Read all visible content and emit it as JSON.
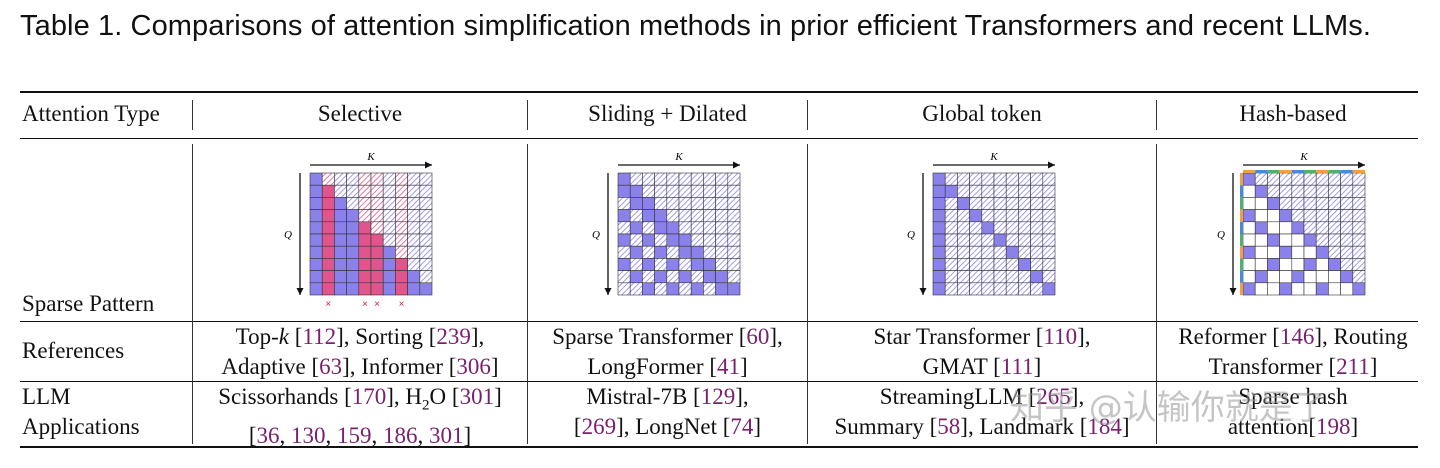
{
  "caption": "Table 1.  Comparisons of attention simplification methods in prior efficient Transformers and recent LLMs.",
  "headers": {
    "attention_type": "Attention Type",
    "selective": "Selective",
    "sliding": "Sliding + Dilated",
    "global": "Global token",
    "hash": "Hash-based"
  },
  "row_labels": {
    "sparse_pattern": "Sparse Pattern",
    "references": "References",
    "llm_line1": "LLM",
    "llm_line2": "Applications"
  },
  "axis_labels": {
    "k": "K",
    "q": "Q"
  },
  "marks": {
    "x": "×"
  },
  "colors": {
    "attend": "#8a82ea",
    "hatch": "#c9c5f5",
    "selective": "#e0568c",
    "selective_hatch": "#f3b6cf",
    "ref_link": "#7a1f6e",
    "hash_orange": "#f0a040",
    "hash_green": "#50b070",
    "hash_blue": "#4a88d8"
  },
  "references": {
    "selective": {
      "l1_a": "Top-",
      "l1_k": "k",
      "l1_b": " [",
      "r1": "112",
      "l1_c": "], Sorting [",
      "r2": "239",
      "l1_d": "],",
      "l2_a": "Adaptive [",
      "r3": "63",
      "l2_b": "], Informer [",
      "r4": "306",
      "l2_c": "]"
    },
    "sliding": {
      "l1_a": "Sparse Transformer [",
      "r1": "60",
      "l1_b": "],",
      "l2_a": "LongFormer [",
      "r2": "41",
      "l2_b": "]"
    },
    "global": {
      "l1_a": "Star Transformer [",
      "r1": "110",
      "l1_b": "],",
      "l2_a": "GMAT [",
      "r2": "111",
      "l2_b": "]"
    },
    "hash": {
      "l1_a": "Reformer [",
      "r1": "146",
      "l1_b": "], Routing",
      "l2_a": "Transformer [",
      "r2": "211",
      "l2_b": "]"
    }
  },
  "applications": {
    "selective": {
      "l1_a": "Scissorhands [",
      "r1": "170",
      "l1_b": "], H",
      "sub": "2",
      "l1_c": "O [",
      "r2": "301",
      "l1_d": "]",
      "l2_a": "[",
      "r3": "36",
      "s1": ", ",
      "r4": "130",
      "s2": ", ",
      "r5": "159",
      "s3": ", ",
      "r6": "186",
      "s4": ", ",
      "r7": "301",
      "l2_b": "]"
    },
    "sliding": {
      "l1_a": "Mistral-7B [",
      "r1": "129",
      "l1_b": "],",
      "l2_a": "[",
      "r2": "269",
      "l2_b": "], LongNet [",
      "r3": "74",
      "l2_c": "]"
    },
    "global": {
      "l1_a": "StreamingLLM [",
      "r1": "265",
      "l1_b": "],",
      "l2_a": "Summary [",
      "r2": "58",
      "l2_b": "], Landmark [",
      "r3": "184",
      "l2_c": "]"
    },
    "hash": {
      "l1_a": "Sparse hash",
      "l2_a": "attention[",
      "r1": "198",
      "l2_b": "]"
    }
  },
  "watermark": "知乎 @认输你就是了"
}
